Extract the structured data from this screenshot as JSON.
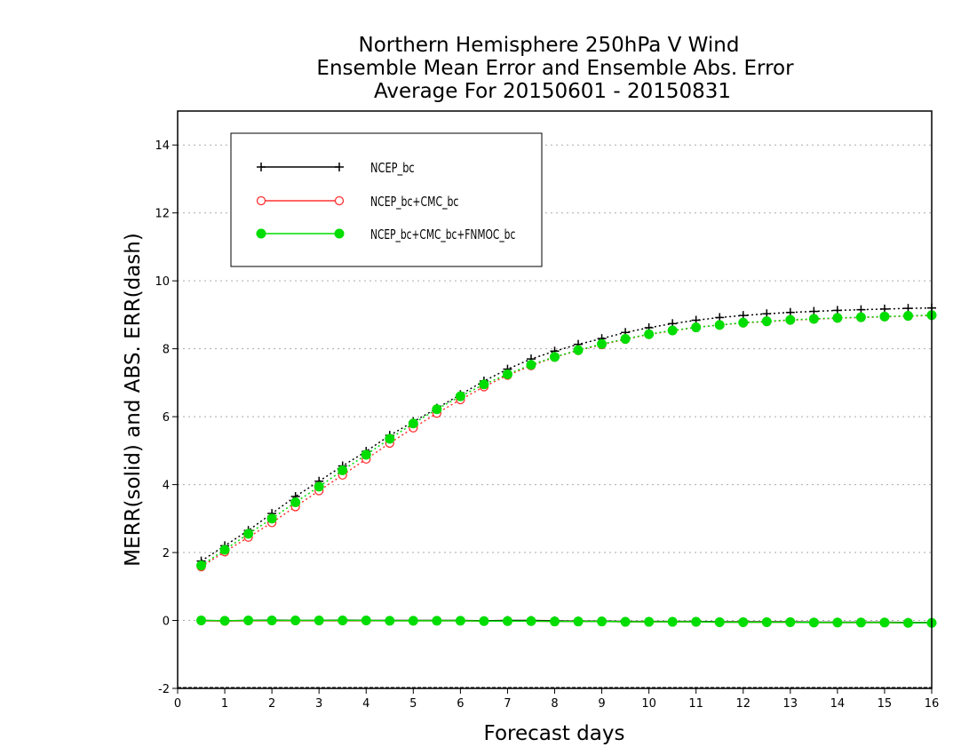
{
  "chart_data": {
    "type": "line",
    "title_lines": [
      "Northern Hemisphere 250hPa V Wind",
      "Ensemble Mean Error and Ensemble Abs. Error",
      "Average For 20150601 - 20150831"
    ],
    "xlabel": "Forecast days",
    "ylabel": "MERR(solid) and ABS. ERR(dash)",
    "xlim": [
      0,
      16
    ],
    "ylim": [
      -2,
      15
    ],
    "xticks": [
      0,
      1,
      2,
      3,
      4,
      5,
      6,
      7,
      8,
      9,
      10,
      11,
      12,
      13,
      14,
      15,
      16
    ],
    "yticks": [
      -2,
      0,
      2,
      4,
      6,
      8,
      10,
      12,
      14
    ],
    "grid": "horizontal dotted",
    "legend_position": "top-left",
    "x": [
      0.5,
      1,
      1.5,
      2,
      2.5,
      3,
      3.5,
      4,
      4.5,
      5,
      5.5,
      6,
      6.5,
      7,
      7.5,
      8,
      8.5,
      9,
      9.5,
      10,
      10.5,
      11,
      11.5,
      12,
      12.5,
      13,
      13.5,
      14,
      14.5,
      15,
      15.5,
      16
    ],
    "series": [
      {
        "name": "NCEP_bc",
        "color": "#000000",
        "marker": "plus",
        "abs_err": [
          1.75,
          2.2,
          2.65,
          3.15,
          3.65,
          4.1,
          4.55,
          4.98,
          5.45,
          5.85,
          6.25,
          6.65,
          7.05,
          7.4,
          7.7,
          7.93,
          8.13,
          8.3,
          8.48,
          8.62,
          8.74,
          8.84,
          8.92,
          8.98,
          9.03,
          9.07,
          9.1,
          9.13,
          9.15,
          9.17,
          9.19,
          9.2
        ],
        "mean_err": [
          0.0,
          -0.01,
          0.0,
          0.01,
          0.0,
          0.0,
          0.01,
          0.0,
          0.0,
          0.0,
          0.0,
          0.0,
          -0.01,
          0.0,
          0.0,
          -0.01,
          -0.02,
          -0.02,
          -0.03,
          -0.03,
          -0.03,
          -0.03,
          -0.04,
          -0.04,
          -0.04,
          -0.04,
          -0.05,
          -0.05,
          -0.05,
          -0.05,
          -0.06,
          -0.06
        ]
      },
      {
        "name": "NCEP_bc+CMC_bc",
        "color": "#ff3030",
        "marker": "open-circle",
        "abs_err": [
          1.58,
          2.02,
          2.45,
          2.88,
          3.35,
          3.82,
          4.28,
          4.75,
          5.22,
          5.67,
          6.1,
          6.5,
          6.88,
          7.22,
          7.5,
          7.75,
          7.95,
          8.12,
          8.28,
          8.42,
          8.53,
          8.63,
          8.7,
          8.76,
          8.8,
          8.84,
          8.87,
          8.9,
          8.92,
          8.94,
          8.96,
          8.98
        ],
        "mean_err": [
          -0.01,
          -0.02,
          -0.01,
          -0.01,
          -0.01,
          -0.01,
          -0.01,
          -0.01,
          -0.01,
          -0.01,
          -0.01,
          -0.01,
          -0.02,
          -0.02,
          -0.02,
          -0.03,
          -0.03,
          -0.03,
          -0.04,
          -0.04,
          -0.04,
          -0.04,
          -0.05,
          -0.05,
          -0.05,
          -0.05,
          -0.06,
          -0.06,
          -0.06,
          -0.06,
          -0.07,
          -0.07
        ]
      },
      {
        "name": "NCEP_bc+CMC_bc+FNMOC_bc",
        "color": "#00dd00",
        "marker": "filled-circle",
        "abs_err": [
          1.62,
          2.08,
          2.55,
          3.0,
          3.48,
          3.94,
          4.42,
          4.88,
          5.35,
          5.8,
          6.22,
          6.6,
          6.95,
          7.25,
          7.53,
          7.76,
          7.96,
          8.14,
          8.29,
          8.43,
          8.54,
          8.63,
          8.7,
          8.77,
          8.81,
          8.85,
          8.88,
          8.91,
          8.93,
          8.95,
          8.97,
          8.99
        ],
        "mean_err": [
          0.0,
          -0.01,
          0.0,
          0.0,
          0.0,
          0.0,
          0.0,
          0.0,
          -0.01,
          -0.01,
          -0.01,
          -0.01,
          -0.02,
          -0.02,
          -0.02,
          -0.03,
          -0.03,
          -0.03,
          -0.04,
          -0.04,
          -0.04,
          -0.04,
          -0.05,
          -0.05,
          -0.05,
          -0.05,
          -0.06,
          -0.06,
          -0.06,
          -0.06,
          -0.07,
          -0.07
        ]
      }
    ]
  }
}
